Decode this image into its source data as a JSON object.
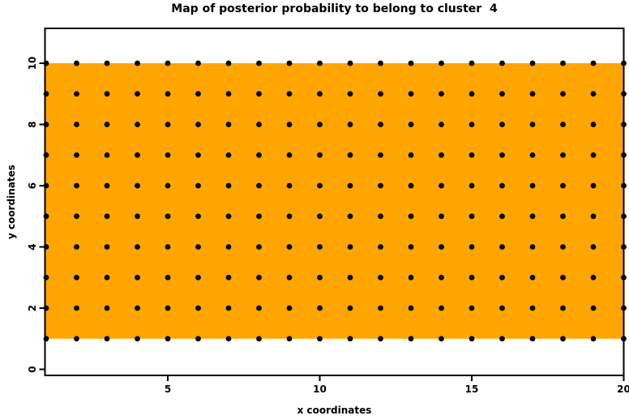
{
  "title": "Map of posterior probability to belong to cluster  4",
  "chart_data": {
    "type": "scatter",
    "title": "Map of posterior probability to belong to cluster  4",
    "xlabel": "x coordinates",
    "ylabel": "y coordinates",
    "xlim": [
      1,
      20
    ],
    "ylim": [
      0,
      10
    ],
    "x_ticks": [
      5,
      10,
      15,
      20
    ],
    "y_ticks": [
      0,
      2,
      4,
      6,
      8,
      10
    ],
    "grid_points": {
      "x_min": 1,
      "x_max": 20,
      "x_step": 1,
      "y_min": 1,
      "y_max": 10,
      "y_step": 1
    },
    "point_color": "#000000",
    "point_radius": 3.4,
    "region": {
      "y_min": 1,
      "y_max": 10,
      "spans_full_width": true,
      "color": "#FFA500"
    },
    "axis_color": "#000000",
    "background_color": "#FFFFFF",
    "grid": "off",
    "legend_position": "none"
  }
}
